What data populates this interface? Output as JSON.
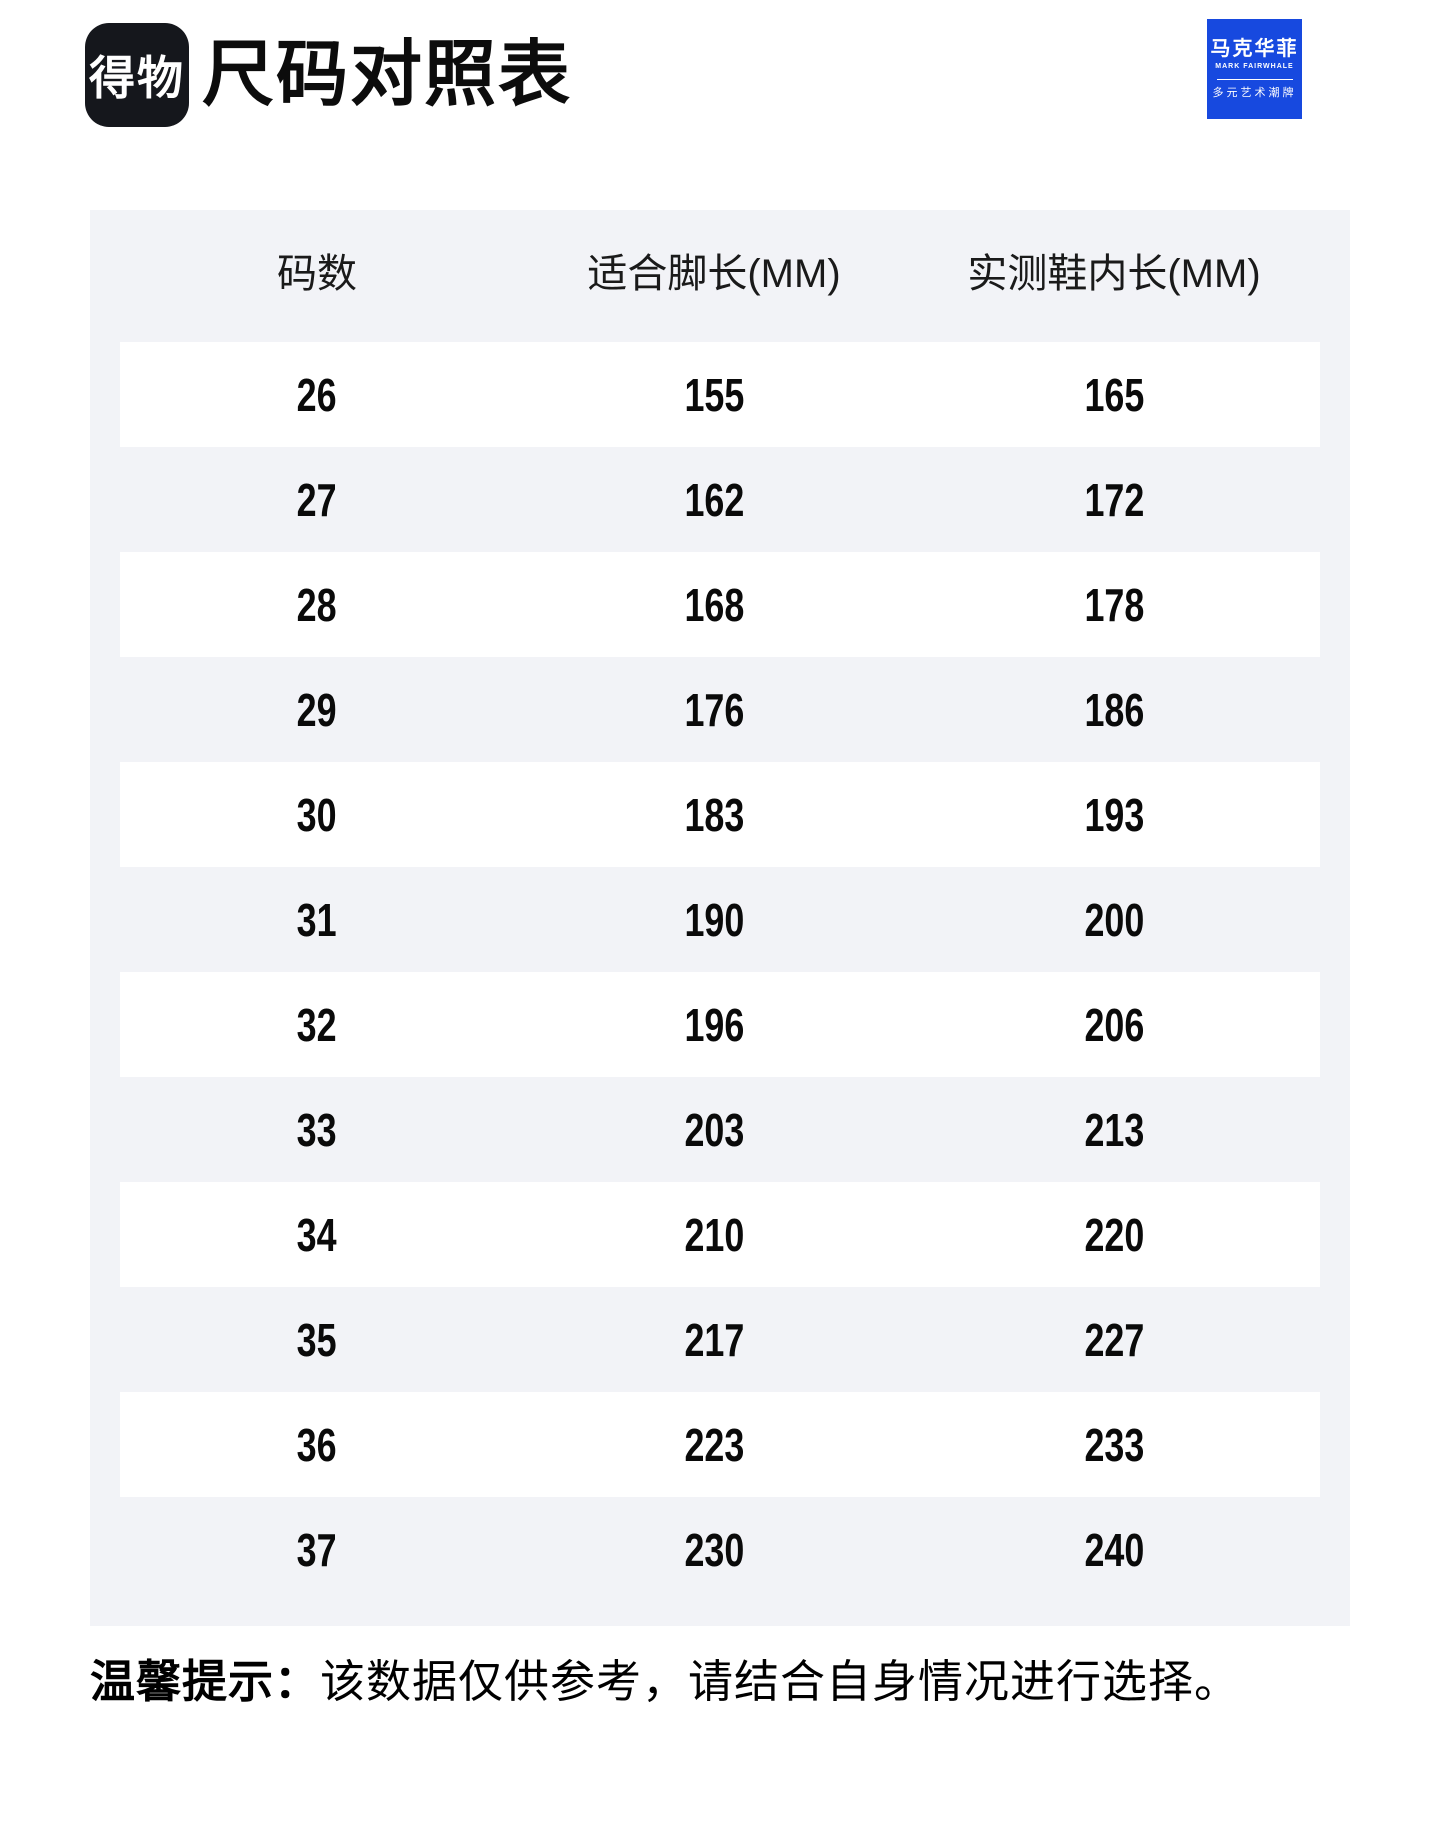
{
  "page_title": "尺码对照表",
  "dewu_logo": {
    "text": "得物"
  },
  "brand_logo": {
    "cn": "马克华菲",
    "en": "MARK FAIRWHALE",
    "tagline": "多元艺术潮牌",
    "color": "#1749df"
  },
  "table": {
    "columns": [
      "码数",
      "适合脚长(MM)",
      "实测鞋内长(MM)"
    ],
    "rows": [
      [
        "26",
        "155",
        "165"
      ],
      [
        "27",
        "162",
        "172"
      ],
      [
        "28",
        "168",
        "178"
      ],
      [
        "29",
        "176",
        "186"
      ],
      [
        "30",
        "183",
        "193"
      ],
      [
        "31",
        "190",
        "200"
      ],
      [
        "32",
        "196",
        "206"
      ],
      [
        "33",
        "203",
        "213"
      ],
      [
        "34",
        "210",
        "220"
      ],
      [
        "35",
        "217",
        "227"
      ],
      [
        "36",
        "223",
        "233"
      ],
      [
        "37",
        "230",
        "240"
      ]
    ]
  },
  "note": {
    "label": "温馨提示：",
    "text": "该数据仅供参考，请结合自身情况进行选择。"
  },
  "colors": {
    "card_background": "#f2f3f7",
    "row_white": "#ffffff",
    "logo_black": "#15171c",
    "brand_blue": "#1749df"
  },
  "chart_data": {
    "type": "table",
    "title": "尺码对照表",
    "columns": [
      "码数",
      "适合脚长(MM)",
      "实测鞋内长(MM)"
    ],
    "rows": [
      [
        26,
        155,
        165
      ],
      [
        27,
        162,
        172
      ],
      [
        28,
        168,
        178
      ],
      [
        29,
        176,
        186
      ],
      [
        30,
        183,
        193
      ],
      [
        31,
        190,
        200
      ],
      [
        32,
        196,
        206
      ],
      [
        33,
        203,
        213
      ],
      [
        34,
        210,
        220
      ],
      [
        35,
        217,
        227
      ],
      [
        36,
        223,
        233
      ],
      [
        37,
        230,
        240
      ]
    ],
    "note": "温馨提示：该数据仅供参考，请结合自身情况进行选择。"
  }
}
